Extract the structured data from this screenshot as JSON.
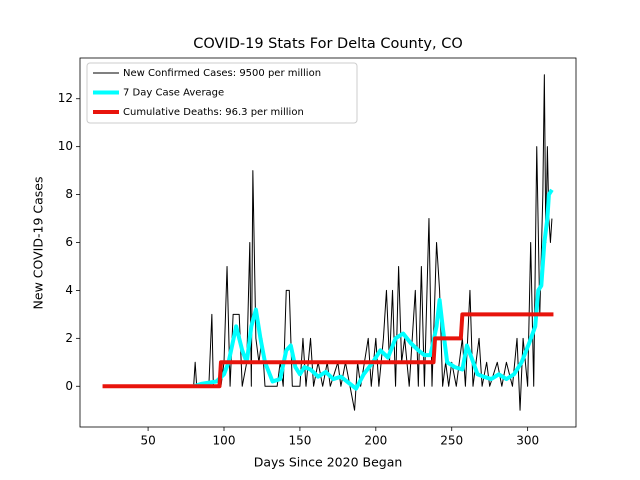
{
  "chart_data": {
    "type": "line",
    "title": "COVID-19 Stats For Delta County, CO",
    "x_label": "Days Since 2020 Began",
    "y_label": "New COVID-19 Cases",
    "xlim": [
      5.15,
      331.85
    ],
    "ylim": [
      -1.7,
      13.7
    ],
    "xticks": [
      50,
      100,
      150,
      200,
      250,
      300
    ],
    "yticks": [
      0,
      2,
      4,
      6,
      8,
      10,
      12
    ],
    "grid": false,
    "legend": "upper left",
    "series": [
      {
        "name": "New Confirmed Cases: 9500 per million",
        "color": "#000000",
        "width": 1,
        "x": [
          80,
          81,
          82,
          90,
          92,
          93,
          98,
          100,
          102,
          104,
          106,
          110,
          112,
          115,
          117,
          118,
          119,
          121,
          123,
          125,
          127,
          135,
          137,
          139,
          141,
          143,
          145,
          150,
          152,
          154,
          157,
          159,
          162,
          165,
          168,
          170,
          175,
          177,
          180,
          183,
          186,
          188,
          190,
          195,
          197,
          200,
          202,
          205,
          207,
          209,
          211,
          213,
          215,
          217,
          219,
          222,
          226,
          228,
          230,
          232,
          235,
          237,
          240,
          242,
          244,
          246,
          248,
          250,
          253,
          257,
          259,
          262,
          264,
          268,
          270,
          273,
          275,
          280,
          283,
          286,
          290,
          293,
          295,
          297,
          300,
          302,
          304,
          306,
          308,
          310,
          311,
          312,
          313,
          314,
          315,
          316
        ],
        "values": [
          0,
          1,
          0,
          0,
          3,
          0,
          0,
          1,
          5,
          0,
          3,
          3,
          0,
          1,
          6,
          0,
          9,
          2,
          1,
          2,
          0,
          0,
          1,
          0,
          4,
          4,
          0,
          0,
          2,
          0,
          2,
          0,
          1,
          0,
          1,
          0,
          1,
          0,
          1,
          0,
          -1,
          1,
          0,
          2,
          0,
          2,
          0,
          2,
          4,
          1,
          4,
          0,
          5,
          1,
          2,
          0,
          4,
          0,
          5,
          0,
          7,
          0,
          6,
          4,
          0,
          1,
          0,
          1,
          0,
          2,
          0,
          4,
          0,
          2,
          0,
          1,
          0,
          1,
          0,
          1,
          0,
          2,
          -1,
          2,
          0,
          6,
          0,
          10,
          3,
          8,
          13,
          6,
          10,
          7,
          6,
          7
        ]
      },
      {
        "name": "7 Day Case Average",
        "color": "#00ffff",
        "width": 4,
        "x": [
          80,
          85,
          95,
          100,
          103,
          108,
          112,
          115,
          118,
          121,
          124,
          127,
          132,
          137,
          141,
          144,
          147,
          150,
          153,
          157,
          162,
          167,
          172,
          177,
          183,
          187,
          192,
          198,
          203,
          208,
          213,
          218,
          223,
          228,
          232,
          236,
          240,
          242,
          244,
          247,
          252,
          257,
          260,
          263,
          267,
          271,
          276,
          281,
          286,
          291,
          296,
          301,
          305,
          307,
          309,
          311,
          313,
          314,
          316
        ],
        "values": [
          0,
          0.1,
          0.2,
          0.5,
          1,
          2.5,
          1.5,
          1,
          2.5,
          3.2,
          2,
          1,
          0.2,
          0.3,
          1.5,
          1.7,
          0.8,
          0.5,
          0.8,
          0.7,
          0.4,
          0.6,
          0.3,
          0.4,
          0.1,
          -0.1,
          0.5,
          1,
          1.5,
          1.2,
          2,
          2.2,
          1.8,
          1.5,
          1.3,
          1.3,
          2.5,
          3.6,
          2.5,
          1,
          0.8,
          0.7,
          1.7,
          1.2,
          0.5,
          0.4,
          0.3,
          0.5,
          0.3,
          0.5,
          1,
          1.8,
          2.5,
          4,
          4.2,
          6,
          7,
          8,
          8.2
        ]
      },
      {
        "name": "Cumulative Deaths: 96.3 per million",
        "color": "#e8140c",
        "width": 4,
        "x": [
          20,
          97,
          98,
          238,
          239,
          256,
          257,
          317
        ],
        "values": [
          0,
          0,
          1,
          1,
          2,
          2,
          3,
          3
        ]
      }
    ]
  }
}
